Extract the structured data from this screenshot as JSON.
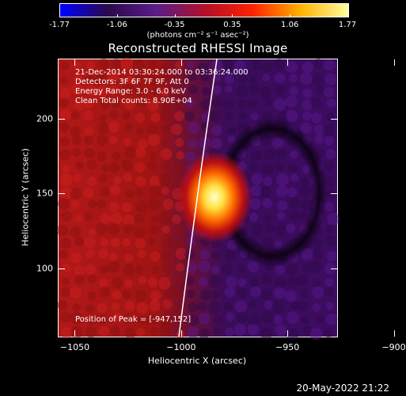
{
  "colorbar": {
    "tick_labels": [
      "-1.77",
      "-1.06",
      "-0.35",
      "0.35",
      "1.06",
      "1.77"
    ],
    "units": "(photons cm⁻² s⁻¹ asec⁻²)",
    "colormap_stops": [
      "#0000ff",
      "#2a0a4a",
      "#5a1c8a",
      "#b0102a",
      "#ff2000",
      "#ffb000",
      "#ffffa0"
    ]
  },
  "chart_data": {
    "type": "heatmap",
    "title": "Reconstructed RHESSI Image",
    "xlabel": "Heliocentric X (arcsec)",
    "ylabel": "Heliocentric Y (arcsec)",
    "xlim": [
      -1058,
      -927
    ],
    "ylim": [
      55,
      240
    ],
    "x_ticks": [
      {
        "value": -1050,
        "label": "−1050"
      },
      {
        "value": -1000,
        "label": "−1000"
      },
      {
        "value": -950,
        "label": "−950"
      },
      {
        "value": -900,
        "label": "−900"
      }
    ],
    "y_ticks": [
      {
        "value": 100,
        "label": "100"
      },
      {
        "value": 150,
        "label": "150"
      },
      {
        "value": 200,
        "label": "200"
      }
    ],
    "peak_position": [
      -947,
      152
    ],
    "annotations": [
      "21-Dec-2014 03:30:24.000 to 03:36:24.000",
      "Detectors: 3F 6F 7F 9F, Att 0",
      "Energy Range: 3.0 - 6.0 keV",
      "Clean    Total counts: 8.90E+04",
      "Position of Peak = [-947,152]"
    ]
  },
  "timestamp": "20-May-2022 21:22"
}
